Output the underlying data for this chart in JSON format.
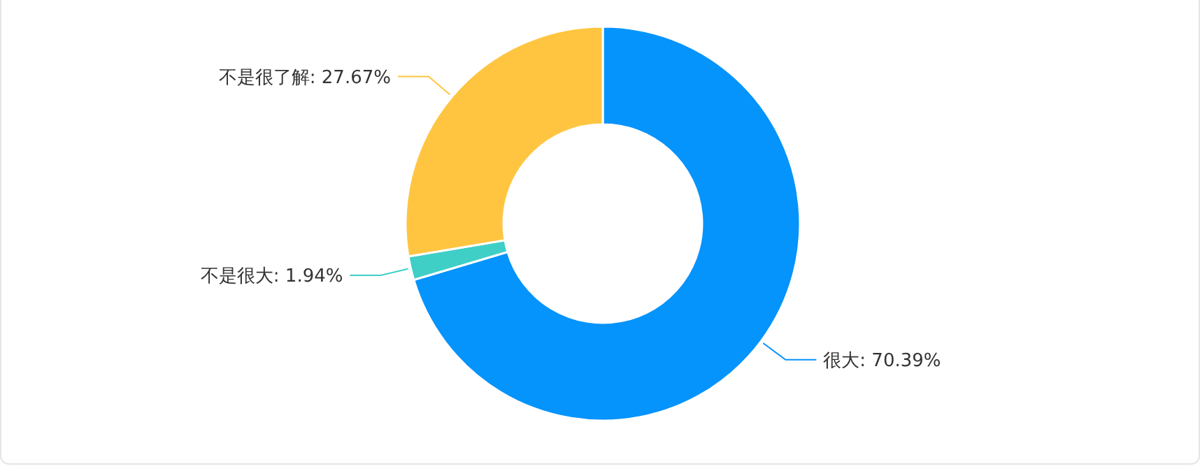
{
  "chart_data": {
    "type": "donut",
    "categories": [
      "很大",
      "不是很大",
      "不是很了解"
    ],
    "values": [
      70.39,
      1.94,
      27.67
    ],
    "value_labels": [
      "70.39%",
      "1.94%",
      "27.67%"
    ],
    "colors": [
      "#0593fc",
      "#3fcfc7",
      "#ffc540"
    ]
  }
}
